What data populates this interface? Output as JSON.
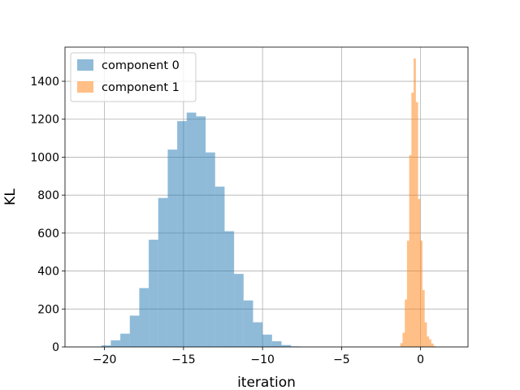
{
  "chart_data": {
    "type": "histogram",
    "xlabel": "iteration",
    "ylabel": "KL",
    "xlim": [
      -22.5,
      3
    ],
    "ylim": [
      0,
      1580
    ],
    "x_ticks": [
      -20,
      -15,
      -10,
      -5,
      0
    ],
    "x_tick_labels": [
      "−20",
      "−15",
      "−10",
      "−5",
      "0"
    ],
    "y_ticks": [
      0,
      200,
      400,
      600,
      800,
      1000,
      1200,
      1400
    ],
    "y_tick_labels": [
      "0",
      "200",
      "400",
      "600",
      "800",
      "1000",
      "1200",
      "1400"
    ],
    "grid": true,
    "legend_position": "upper-left",
    "series": [
      {
        "name": "component 0",
        "color": "#1f77b4",
        "alpha": 0.5,
        "bins": [
          {
            "x0": -20.2,
            "x1": -19.6,
            "count": 8
          },
          {
            "x0": -19.6,
            "x1": -19.0,
            "count": 35
          },
          {
            "x0": -19.0,
            "x1": -18.4,
            "count": 70
          },
          {
            "x0": -18.4,
            "x1": -17.8,
            "count": 165
          },
          {
            "x0": -17.8,
            "x1": -17.2,
            "count": 310
          },
          {
            "x0": -17.2,
            "x1": -16.6,
            "count": 565
          },
          {
            "x0": -16.6,
            "x1": -16.0,
            "count": 785
          },
          {
            "x0": -16.0,
            "x1": -15.4,
            "count": 1040
          },
          {
            "x0": -15.4,
            "x1": -14.8,
            "count": 1190
          },
          {
            "x0": -14.8,
            "x1": -14.2,
            "count": 1235
          },
          {
            "x0": -14.2,
            "x1": -13.6,
            "count": 1215
          },
          {
            "x0": -13.6,
            "x1": -13.0,
            "count": 1025
          },
          {
            "x0": -13.0,
            "x1": -12.4,
            "count": 845
          },
          {
            "x0": -12.4,
            "x1": -11.8,
            "count": 610
          },
          {
            "x0": -11.8,
            "x1": -11.2,
            "count": 385
          },
          {
            "x0": -11.2,
            "x1": -10.6,
            "count": 245
          },
          {
            "x0": -10.6,
            "x1": -10.0,
            "count": 130
          },
          {
            "x0": -10.0,
            "x1": -9.4,
            "count": 65
          },
          {
            "x0": -9.4,
            "x1": -8.8,
            "count": 30
          },
          {
            "x0": -8.8,
            "x1": -8.2,
            "count": 10
          },
          {
            "x0": -8.2,
            "x1": -7.6,
            "count": 3
          }
        ]
      },
      {
        "name": "component 1",
        "color": "#ff7f0e",
        "alpha": 0.5,
        "bins": [
          {
            "x0": -1.28,
            "x1": -1.14,
            "count": 20
          },
          {
            "x0": -1.14,
            "x1": -1.0,
            "count": 75
          },
          {
            "x0": -1.0,
            "x1": -0.86,
            "count": 250
          },
          {
            "x0": -0.86,
            "x1": -0.72,
            "count": 560
          },
          {
            "x0": -0.72,
            "x1": -0.58,
            "count": 1010
          },
          {
            "x0": -0.58,
            "x1": -0.44,
            "count": 1340
          },
          {
            "x0": -0.44,
            "x1": -0.3,
            "count": 1520
          },
          {
            "x0": -0.3,
            "x1": -0.16,
            "count": 1290
          },
          {
            "x0": -0.16,
            "x1": -0.02,
            "count": 780
          },
          {
            "x0": -0.02,
            "x1": 0.12,
            "count": 560
          },
          {
            "x0": 0.12,
            "x1": 0.26,
            "count": 300
          },
          {
            "x0": 0.26,
            "x1": 0.4,
            "count": 130
          },
          {
            "x0": 0.4,
            "x1": 0.54,
            "count": 55
          },
          {
            "x0": 0.54,
            "x1": 0.68,
            "count": 40
          },
          {
            "x0": 0.68,
            "x1": 0.82,
            "count": 18
          },
          {
            "x0": 0.82,
            "x1": 0.96,
            "count": 5
          }
        ]
      }
    ]
  }
}
